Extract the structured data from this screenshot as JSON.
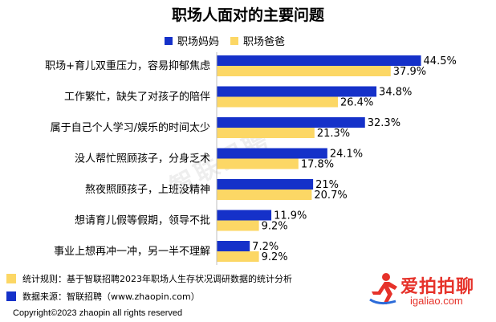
{
  "title": "职场人面对的主要问题",
  "legend": {
    "mom": "职场妈妈",
    "dad": "职场爸爸"
  },
  "colors": {
    "mom": "#1531c9",
    "dad": "#fcd765",
    "logo": "#e6322a"
  },
  "watermark": "智联招聘",
  "notes": {
    "rule": "统计规则：基于智联招聘2023年职场人生存状况调研数据的统计分析",
    "source": "数据来源：智联招聘（www.zhaopin.com）"
  },
  "copyright": "Copyright©2023 zhaopin all rights reserved",
  "logo": {
    "text": "爱拍拍聊",
    "url": "igaliao.com",
    "icon": "runner-icon"
  },
  "chart_data": {
    "type": "bar",
    "orientation": "horizontal",
    "title": "职场人面对的主要问题",
    "legend_position": "top",
    "grid": false,
    "xlim": [
      0,
      50
    ],
    "categories": [
      "职场+育儿双重压力，容易抑郁焦虑",
      "工作繁忙，缺失了对孩子的陪伴",
      "属于自己个人学习/娱乐的时间太少",
      "没人帮忙照顾孩子，分身乏术",
      "熬夜照顾孩子，上班没精神",
      "想请育儿假等假期，领导不批",
      "事业上想再冲一冲，另一半不理解"
    ],
    "series": [
      {
        "name": "职场妈妈",
        "values": [
          44.5,
          34.8,
          32.3,
          24.1,
          21,
          11.9,
          7.2
        ],
        "labels": [
          "44.5%",
          "34.8%",
          "32.3%",
          "24.1%",
          "21%",
          "11.9%",
          "7.2%"
        ]
      },
      {
        "name": "职场爸爸",
        "values": [
          37.9,
          26.4,
          21.3,
          17.8,
          20.7,
          9.2,
          9.2
        ],
        "labels": [
          "37.9%",
          "26.4%",
          "21.3%",
          "17.8%",
          "20.7%",
          "9.2%",
          "9.2%"
        ]
      }
    ]
  }
}
